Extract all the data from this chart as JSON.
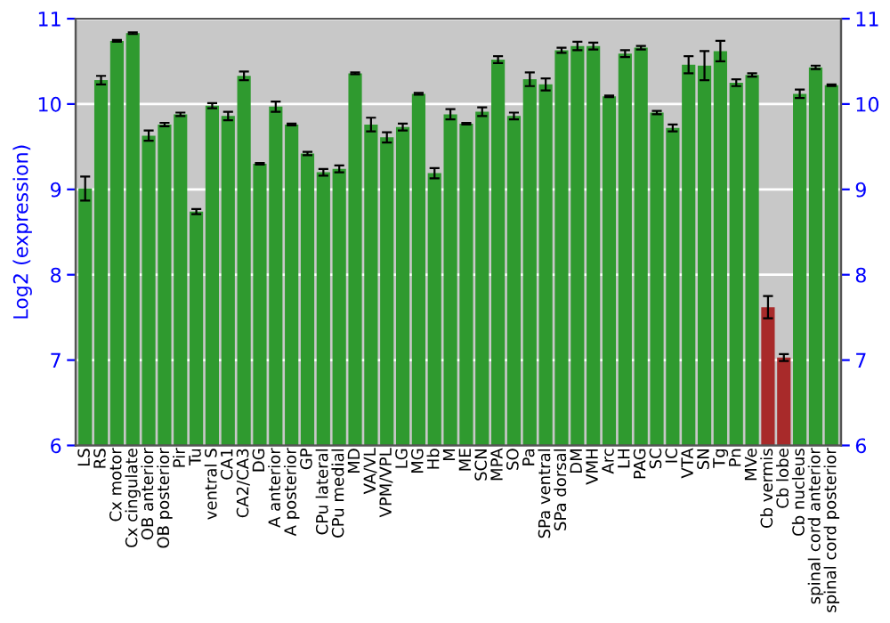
{
  "chart_data": {
    "type": "bar",
    "ylabel": "Log2 (expression)",
    "categories": [
      "LS",
      "RS",
      "Cx motor",
      "Cx cingulate",
      "OB anterior",
      "OB posterior",
      "Pir",
      "Tu",
      "ventral S",
      "CA1",
      "CA2/CA3",
      "DG",
      "A anterior",
      "A posterior",
      "GP",
      "CPu lateral",
      "CPu medial",
      "MD",
      "VA/VL",
      "VPM/VPL",
      "LG",
      "MG",
      "Hb",
      "M",
      "ME",
      "SCN",
      "MPA",
      "SO",
      "Pa",
      "SPa ventral",
      "SPa dorsal",
      "DM",
      "VMH",
      "Arc",
      "LH",
      "PAG",
      "SC",
      "IC",
      "VTA",
      "SN",
      "Tg",
      "Pn",
      "MVe",
      "Cb vermis",
      "Cb lobe",
      "Cb nucleus",
      "spinal cord anterior",
      "spinal cord posterior"
    ],
    "values": [
      9.01,
      10.28,
      10.74,
      10.83,
      9.63,
      9.76,
      9.88,
      8.74,
      9.98,
      9.86,
      10.33,
      9.3,
      9.97,
      9.76,
      9.42,
      9.2,
      9.24,
      10.36,
      9.76,
      9.61,
      9.73,
      10.12,
      9.19,
      9.88,
      9.77,
      9.91,
      10.52,
      9.86,
      10.29,
      10.23,
      10.63,
      10.68,
      10.68,
      10.09,
      10.59,
      10.66,
      9.9,
      9.72,
      10.46,
      10.45,
      10.62,
      10.25,
      10.34,
      7.62,
      7.03,
      10.12,
      10.43,
      10.22
    ],
    "errors": [
      0.14,
      0.05,
      0.01,
      0.01,
      0.06,
      0.02,
      0.02,
      0.03,
      0.03,
      0.05,
      0.05,
      0.01,
      0.06,
      0.01,
      0.02,
      0.04,
      0.04,
      0.01,
      0.08,
      0.06,
      0.04,
      0.01,
      0.06,
      0.06,
      0.01,
      0.05,
      0.04,
      0.04,
      0.08,
      0.07,
      0.03,
      0.05,
      0.04,
      0.01,
      0.04,
      0.02,
      0.02,
      0.04,
      0.1,
      0.17,
      0.12,
      0.04,
      0.02,
      0.13,
      0.04,
      0.05,
      0.02,
      0.01
    ],
    "colors": [
      "#2f9a2f",
      "#2f9a2f",
      "#2f9a2f",
      "#2f9a2f",
      "#2f9a2f",
      "#2f9a2f",
      "#2f9a2f",
      "#2f9a2f",
      "#2f9a2f",
      "#2f9a2f",
      "#2f9a2f",
      "#2f9a2f",
      "#2f9a2f",
      "#2f9a2f",
      "#2f9a2f",
      "#2f9a2f",
      "#2f9a2f",
      "#2f9a2f",
      "#2f9a2f",
      "#2f9a2f",
      "#2f9a2f",
      "#2f9a2f",
      "#2f9a2f",
      "#2f9a2f",
      "#2f9a2f",
      "#2f9a2f",
      "#2f9a2f",
      "#2f9a2f",
      "#2f9a2f",
      "#2f9a2f",
      "#2f9a2f",
      "#2f9a2f",
      "#2f9a2f",
      "#2f9a2f",
      "#2f9a2f",
      "#2f9a2f",
      "#2f9a2f",
      "#2f9a2f",
      "#2f9a2f",
      "#2f9a2f",
      "#2f9a2f",
      "#2f9a2f",
      "#2f9a2f",
      "#a82a2a",
      "#a82a2a",
      "#2f9a2f",
      "#2f9a2f",
      "#2f9a2f"
    ],
    "ylim": [
      6,
      11
    ],
    "yticks": [
      6,
      7,
      8,
      9,
      10,
      11
    ],
    "y2lim": [
      6,
      11
    ],
    "y2ticks": [
      6,
      7,
      8,
      9,
      10,
      11
    ],
    "grid": "y"
  }
}
